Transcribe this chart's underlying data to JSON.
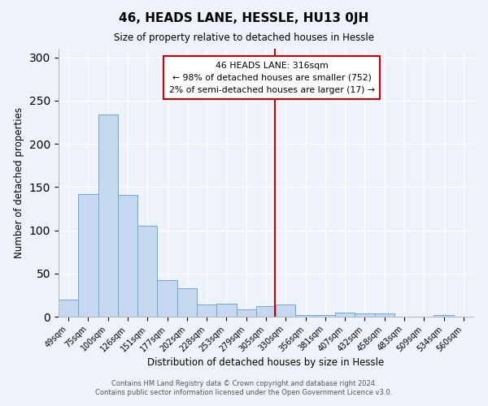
{
  "title": "46, HEADS LANE, HESSLE, HU13 0JH",
  "subtitle": "Size of property relative to detached houses in Hessle",
  "xlabel": "Distribution of detached houses by size in Hessle",
  "ylabel": "Number of detached properties",
  "bar_labels": [
    "49sqm",
    "75sqm",
    "100sqm",
    "126sqm",
    "151sqm",
    "177sqm",
    "202sqm",
    "228sqm",
    "253sqm",
    "279sqm",
    "305sqm",
    "330sqm",
    "356sqm",
    "381sqm",
    "407sqm",
    "432sqm",
    "458sqm",
    "483sqm",
    "509sqm",
    "534sqm",
    "560sqm"
  ],
  "bar_values": [
    20,
    142,
    234,
    141,
    105,
    42,
    33,
    14,
    15,
    8,
    12,
    14,
    2,
    2,
    5,
    4,
    4,
    0,
    0,
    2,
    0
  ],
  "bar_color": "#c5d8f0",
  "bar_edgecolor": "#6aaad4",
  "vline_color": "#cc0000",
  "annotation_title": "46 HEADS LANE: 316sqm",
  "annotation_line1": "← 98% of detached houses are smaller (752)",
  "annotation_line2": "2% of semi-detached houses are larger (17) →",
  "annotation_box_edgecolor": "#cc0000",
  "ylim": [
    0,
    310
  ],
  "yticks": [
    0,
    50,
    100,
    150,
    200,
    250,
    300
  ],
  "footer1": "Contains HM Land Registry data © Crown copyright and database right 2024.",
  "footer2": "Contains public sector information licensed under the Open Government Licence v3.0.",
  "background_color": "#eef2fb"
}
